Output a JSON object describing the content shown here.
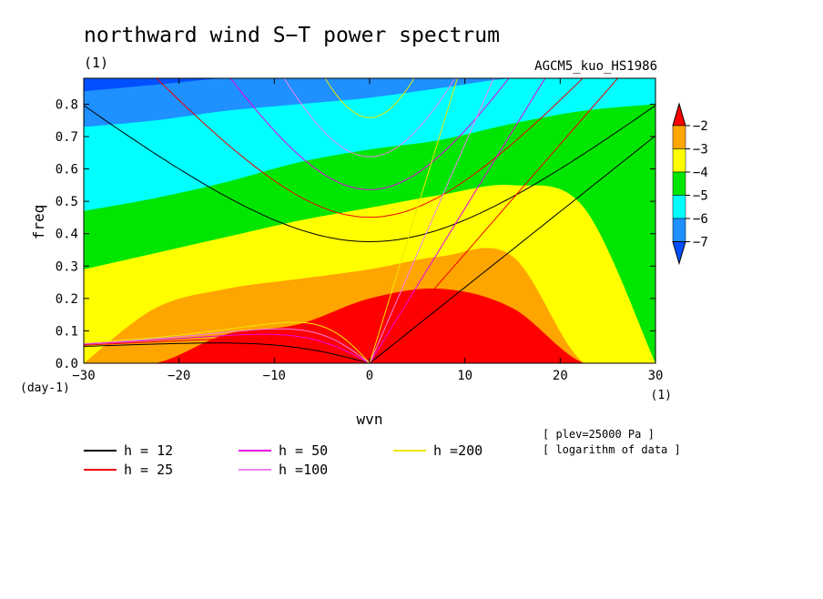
{
  "chart_data": {
    "type": "heatmap",
    "title": "northward wind S−T power spectrum",
    "subtitle_left": "(1)",
    "subtitle_right": "AGCM5_kuo_HS1986",
    "xlabel": "wvn",
    "ylabel": "freq",
    "x_unit": "(1)",
    "y_unit": "(day-1)",
    "xlim": [
      -30,
      30
    ],
    "ylim": [
      0.0,
      0.88
    ],
    "xticks": [
      -30,
      -20,
      -10,
      0,
      10,
      20,
      30
    ],
    "xtick_labels": [
      "−30",
      "−20",
      "−10",
      "0",
      "10",
      "20",
      "30"
    ],
    "yticks": [
      0.0,
      0.1,
      0.2,
      0.3,
      0.4,
      0.5,
      0.6,
      0.7,
      0.8
    ],
    "ytick_labels": [
      "0.0",
      "0.1",
      "0.2",
      "0.3",
      "0.4",
      "0.5",
      "0.6",
      "0.7",
      "0.8"
    ],
    "colorbar": {
      "levels": [
        -2,
        -3,
        -4,
        -5,
        -6,
        -7
      ],
      "labels": [
        "−2",
        "−3",
        "−4",
        "−5",
        "−6",
        "−7"
      ],
      "colors": [
        "#ff0000",
        "#ffa500",
        "#ffff00",
        "#00e600",
        "#00ffff",
        "#1e90ff",
        "#0050ff"
      ]
    },
    "contour_bands": [
      {
        "level": "<-7",
        "color": "#0050ff",
        "boundary_y": [
          0.88,
          0.88,
          0.88,
          0.88,
          0.88,
          0.88,
          0.88,
          0.88,
          0.88
        ]
      },
      {
        "level": "-7..-6",
        "color": "#1e90ff",
        "boundary_y": [
          0.84,
          0.86,
          0.88,
          0.88,
          0.88,
          0.88,
          0.88,
          0.88,
          0.88
        ]
      },
      {
        "level": "-6..-5",
        "color": "#00ffff",
        "boundary_y": [
          0.73,
          0.75,
          0.78,
          0.8,
          0.82,
          0.85,
          0.88,
          0.88,
          0.88
        ]
      },
      {
        "level": "-5..-4",
        "color": "#00e600",
        "boundary_y": [
          0.47,
          0.51,
          0.56,
          0.62,
          0.66,
          0.69,
          0.74,
          0.78,
          0.8
        ]
      },
      {
        "level": "-4..-3",
        "color": "#ffff00",
        "boundary_y": [
          0.29,
          0.34,
          0.39,
          0.44,
          0.48,
          0.52,
          0.55,
          0.48,
          0.0
        ]
      },
      {
        "level": "-3..-2",
        "color": "#ffa500",
        "boundary_y": [
          0.0,
          0.17,
          0.23,
          0.26,
          0.29,
          0.33,
          0.33,
          0.0,
          0.0
        ]
      },
      {
        "level": ">-2",
        "color": "#ff0000",
        "boundary_y": [
          0.0,
          0.0,
          0.09,
          0.12,
          0.2,
          0.23,
          0.17,
          0.0,
          0.0
        ]
      }
    ],
    "band_x": [
      -30,
      -22.5,
      -15,
      -7.5,
      0,
      7.5,
      15,
      22.5,
      30
    ],
    "dispersion_curves": [
      {
        "name": "h = 12",
        "h": 12,
        "color": "#000000",
        "label": "h = 12"
      },
      {
        "name": "h = 25",
        "h": 25,
        "color": "#ee0000",
        "label": "h = 25"
      },
      {
        "name": "h = 50",
        "h": 50,
        "color": "#e600e6",
        "label": "h = 50"
      },
      {
        "name": "h =100",
        "h": 100,
        "color": "#ee82ee",
        "label": "h =100"
      },
      {
        "name": "h =200",
        "h": 200,
        "color": "#f0e600",
        "label": "h =200"
      }
    ],
    "notes": [
      "[ plev=25000 Pa ]",
      "[ logarithm of data ]"
    ]
  }
}
